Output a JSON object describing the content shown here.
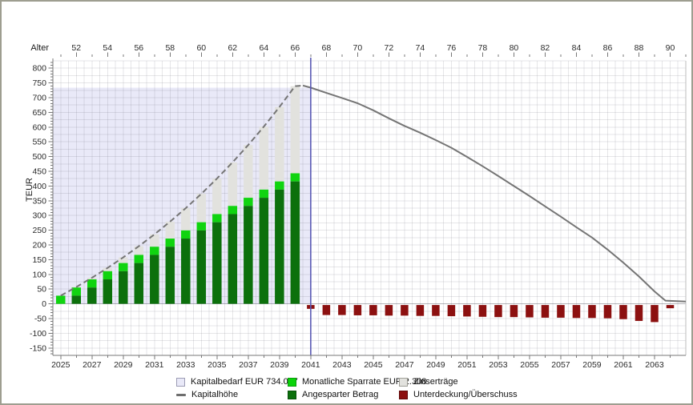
{
  "window": {
    "background": "#ffffff",
    "border_color": "#9e9e90"
  },
  "chart_data": {
    "type": "bar",
    "description": "Retirement capital projection: stacked savings bars with capital curve and post-retirement shortfall bars",
    "y_axis": {
      "label": "TEUR",
      "min": -175,
      "max": 825,
      "label_step": 50,
      "minor_tick_step": 10,
      "grid_step": 25,
      "tick_labels": [
        800,
        750,
        700,
        650,
        600,
        550,
        500,
        450,
        400,
        350,
        300,
        250,
        200,
        150,
        100,
        50,
        0,
        -50,
        -100,
        -150
      ]
    },
    "x_axis_bottom": {
      "min": 2024.5,
      "max": 2065,
      "tick_labels": [
        2025,
        2027,
        2029,
        2031,
        2033,
        2035,
        2037,
        2039,
        2041,
        2043,
        2045,
        2047,
        2049,
        2051,
        2053,
        2055,
        2057,
        2059,
        2061,
        2063
      ]
    },
    "x_axis_top": {
      "label": "Alter",
      "tick_labels": [
        52,
        54,
        56,
        58,
        60,
        62,
        64,
        66,
        68,
        70,
        72,
        74,
        76,
        78,
        80,
        82,
        84,
        86,
        88,
        90
      ],
      "first_age": 52,
      "year_of_first_age": 2026
    },
    "retirement_marker_year": 2041,
    "kapitalbedarf": {
      "label": "Kapitalbedarf EUR 734.017",
      "value_teur": 734,
      "start_year": 2024.5,
      "end_year": 2041
    },
    "monthly_saving_eur": "2.308",
    "savings_bars": [
      {
        "year": 2025,
        "angespart": 0,
        "sparrate": 27.7,
        "zinsertraege": 0
      },
      {
        "year": 2026,
        "angespart": 27.7,
        "sparrate": 27.7,
        "zinsertraege": 1.8
      },
      {
        "year": 2027,
        "angespart": 55.4,
        "sparrate": 27.7,
        "zinsertraege": 5.5
      },
      {
        "year": 2028,
        "angespart": 83.1,
        "sparrate": 27.7,
        "zinsertraege": 11.3
      },
      {
        "year": 2029,
        "angespart": 110.8,
        "sparrate": 27.7,
        "zinsertraege": 19.2
      },
      {
        "year": 2030,
        "angespart": 138.5,
        "sparrate": 27.7,
        "zinsertraege": 29.4
      },
      {
        "year": 2031,
        "angespart": 166.2,
        "sparrate": 27.7,
        "zinsertraege": 42.1
      },
      {
        "year": 2032,
        "angespart": 193.9,
        "sparrate": 27.7,
        "zinsertraege": 57.4
      },
      {
        "year": 2033,
        "angespart": 221.6,
        "sparrate": 27.7,
        "zinsertraege": 75.4
      },
      {
        "year": 2034,
        "angespart": 249.3,
        "sparrate": 27.7,
        "zinsertraege": 96.4
      },
      {
        "year": 2035,
        "angespart": 277.0,
        "sparrate": 27.7,
        "zinsertraege": 120.5
      },
      {
        "year": 2036,
        "angespart": 304.7,
        "sparrate": 27.7,
        "zinsertraege": 148.0
      },
      {
        "year": 2037,
        "angespart": 332.4,
        "sparrate": 27.7,
        "zinsertraege": 179.0
      },
      {
        "year": 2038,
        "angespart": 360.1,
        "sparrate": 27.7,
        "zinsertraege": 213.8
      },
      {
        "year": 2039,
        "angespart": 387.8,
        "sparrate": 27.7,
        "zinsertraege": 252.7
      },
      {
        "year": 2040,
        "angespart": 415.5,
        "sparrate": 27.7,
        "zinsertraege": 295.8
      }
    ],
    "shortfall_bars": [
      {
        "year": 2041,
        "value": -17
      },
      {
        "year": 2042,
        "value": -38
      },
      {
        "year": 2043,
        "value": -38
      },
      {
        "year": 2044,
        "value": -39
      },
      {
        "year": 2045,
        "value": -39
      },
      {
        "year": 2046,
        "value": -40
      },
      {
        "year": 2047,
        "value": -40
      },
      {
        "year": 2048,
        "value": -41
      },
      {
        "year": 2049,
        "value": -41
      },
      {
        "year": 2050,
        "value": -42
      },
      {
        "year": 2051,
        "value": -43
      },
      {
        "year": 2052,
        "value": -44
      },
      {
        "year": 2053,
        "value": -45
      },
      {
        "year": 2054,
        "value": -45
      },
      {
        "year": 2055,
        "value": -46
      },
      {
        "year": 2056,
        "value": -47
      },
      {
        "year": 2057,
        "value": -47
      },
      {
        "year": 2058,
        "value": -48
      },
      {
        "year": 2059,
        "value": -48
      },
      {
        "year": 2060,
        "value": -49
      },
      {
        "year": 2061,
        "value": -52
      },
      {
        "year": 2062,
        "value": -58
      },
      {
        "year": 2063,
        "value": -62
      },
      {
        "year": 2064,
        "value": -15
      }
    ],
    "kapitalhoehe_dashed": [
      [
        2025,
        27.7
      ],
      [
        2026,
        57.2
      ],
      [
        2027,
        88.6
      ],
      [
        2028,
        122.1
      ],
      [
        2029,
        157.7
      ],
      [
        2030,
        195.6
      ],
      [
        2031,
        236
      ],
      [
        2032,
        279
      ],
      [
        2033,
        324.7
      ],
      [
        2034,
        373.4
      ],
      [
        2035,
        425.2
      ],
      [
        2036,
        480.4
      ],
      [
        2037,
        539.1
      ],
      [
        2038,
        601.6
      ],
      [
        2039,
        668.2
      ],
      [
        2040,
        739
      ],
      [
        2040.5,
        741
      ]
    ],
    "kapitalhoehe_solid": [
      [
        2040.5,
        741
      ],
      [
        2041,
        734
      ],
      [
        2042,
        716
      ],
      [
        2043,
        699
      ],
      [
        2044,
        681
      ],
      [
        2045,
        657
      ],
      [
        2046,
        630
      ],
      [
        2047,
        604
      ],
      [
        2048,
        581
      ],
      [
        2049,
        556
      ],
      [
        2050,
        530
      ],
      [
        2051,
        499
      ],
      [
        2052,
        467
      ],
      [
        2053,
        434
      ],
      [
        2054,
        400
      ],
      [
        2055,
        366
      ],
      [
        2056,
        331
      ],
      [
        2057,
        296
      ],
      [
        2058,
        260
      ],
      [
        2059,
        225
      ],
      [
        2060,
        184
      ],
      [
        2061,
        140
      ],
      [
        2062,
        93
      ],
      [
        2063,
        42
      ],
      [
        2063.7,
        11
      ],
      [
        2065,
        8
      ]
    ],
    "colors": {
      "kapitalbedarf_fill": "#e9e9f8",
      "sparrate_green": "#10d410",
      "angespart_green": "#0c700c",
      "zins_gray": "#e2e2de",
      "shortfall_red": "#8c1010",
      "kapitalhoehe_line": "#757575",
      "retirement_marker": "#5a5ab4",
      "grid": "rgba(100,100,115,0.16)",
      "axis": "#777777",
      "tick_text": "#2b2b2b"
    }
  },
  "legend": {
    "items": [
      {
        "label": "Kapitalbedarf EUR 734.017",
        "swatch": "box",
        "fill": "#e9e9f8",
        "border": "#9c9cb4"
      },
      {
        "label": "Monatliche Sparrate EUR 2.308",
        "swatch": "box",
        "fill": "#0ad40a",
        "border": "#0a9c0a"
      },
      {
        "label": "Zinserträge",
        "swatch": "box",
        "fill": "#e2e2de",
        "border": "#a0a098"
      },
      {
        "label": "Kapitalhöhe",
        "swatch": "line",
        "fill": "#6e6e6e",
        "border": "#6e6e6e"
      },
      {
        "label": "Angesparter Betrag",
        "swatch": "box",
        "fill": "#0c700c",
        "border": "#07500a"
      },
      {
        "label": "Unterdeckung/Überschuss",
        "swatch": "box",
        "fill": "#8c1010",
        "border": "#5f0a0a"
      }
    ]
  }
}
